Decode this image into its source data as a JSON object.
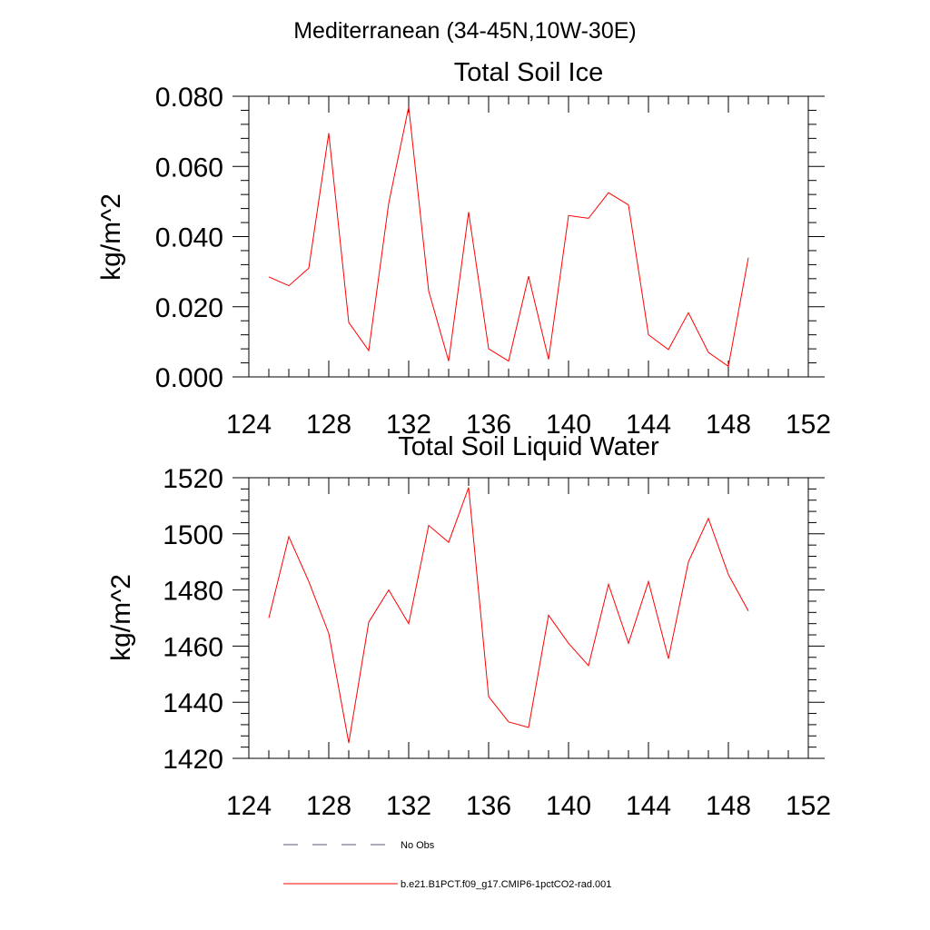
{
  "page_title": "Mediterranean (34-45N,10W-30E)",
  "chart_data": [
    {
      "type": "line",
      "title": "Total Soil Ice",
      "xlabel": "",
      "ylabel": "kg/m^2",
      "xlim": [
        124,
        152
      ],
      "ylim": [
        0,
        0.08
      ],
      "x_ticks": [
        "124",
        "128",
        "132",
        "136",
        "140",
        "144",
        "148",
        "152"
      ],
      "y_ticks": [
        "0.000",
        "0.020",
        "0.040",
        "0.060",
        "0.080"
      ],
      "x": [
        125,
        126,
        127,
        128,
        129,
        130,
        131,
        132,
        133,
        134,
        135,
        136,
        137,
        138,
        139,
        140,
        141,
        142,
        143,
        144,
        145,
        146,
        147,
        148,
        149
      ],
      "series": [
        {
          "color": "#ff0000",
          "values": [
            0.0285,
            0.026,
            0.031,
            0.0695,
            0.0155,
            0.0075,
            0.0495,
            0.077,
            0.0245,
            0.0045,
            0.047,
            0.008,
            0.0045,
            0.0287,
            0.005,
            0.046,
            0.0452,
            0.0525,
            0.049,
            0.012,
            0.0078,
            0.0183,
            0.007,
            0.003,
            0.034
          ]
        }
      ]
    },
    {
      "type": "line",
      "title": "Total Soil Liquid Water",
      "xlabel": "",
      "ylabel": "kg/m^2",
      "xlim": [
        124,
        152
      ],
      "ylim": [
        1420,
        1520
      ],
      "x_ticks": [
        "124",
        "128",
        "132",
        "136",
        "140",
        "144",
        "148",
        "152"
      ],
      "y_ticks": [
        "1420",
        "1440",
        "1460",
        "1480",
        "1500",
        "1520"
      ],
      "x": [
        125,
        126,
        127,
        128,
        129,
        130,
        131,
        132,
        133,
        134,
        135,
        136,
        137,
        138,
        139,
        140,
        141,
        142,
        143,
        144,
        145,
        146,
        147,
        148,
        149
      ],
      "series": [
        {
          "color": "#ff0000",
          "values": [
            1470,
            1499,
            1483,
            1464.5,
            1425.5,
            1468.5,
            1480,
            1468,
            1503,
            1497,
            1516.5,
            1442,
            1433,
            1431,
            1471,
            1461,
            1453,
            1482,
            1461,
            1483,
            1455.5,
            1490,
            1505.5,
            1485.5,
            1472.5
          ]
        }
      ]
    }
  ],
  "legend": [
    {
      "label": "No Obs",
      "style": "dashed",
      "color": "#5a5a7a"
    },
    {
      "label": "b.e21.B1PCT.f09_g17.CMIP6-1pctCO2-rad.001",
      "style": "solid",
      "color": "#ff0000"
    }
  ]
}
